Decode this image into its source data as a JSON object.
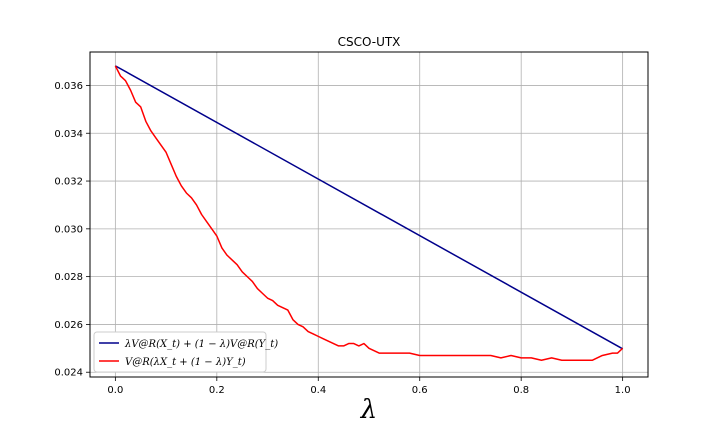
{
  "chart_data": {
    "type": "line",
    "title": "CSCO-UTX",
    "xlabel": "λ",
    "ylabel": "",
    "xlim": [
      -0.05,
      1.05
    ],
    "ylim": [
      0.0238,
      0.0374
    ],
    "xticks": [
      0.0,
      0.2,
      0.4,
      0.6,
      0.8,
      1.0
    ],
    "xtick_labels": [
      "0.0",
      "0.2",
      "0.4",
      "0.6",
      "0.8",
      "1.0"
    ],
    "yticks": [
      0.024,
      0.026,
      0.028,
      0.03,
      0.032,
      0.034,
      0.036
    ],
    "ytick_labels": [
      "0.024",
      "0.026",
      "0.028",
      "0.030",
      "0.032",
      "0.036"
    ],
    "ytick_labels_full": [
      "0.024",
      "0.026",
      "0.028",
      "0.030",
      "0.032",
      "0.034",
      "0.036"
    ],
    "grid": true,
    "legend_position": "lower-left",
    "series": [
      {
        "name": "λV@R(X_t) + (1 − λ)V@R(Y_t)",
        "color": "#00008b",
        "x": [
          0.0,
          1.0
        ],
        "y": [
          0.03682,
          0.02498
        ]
      },
      {
        "name": "V@R(λX_t + (1 − λ)Y_t)",
        "color": "#ff0000",
        "x": [
          0.0,
          0.01,
          0.02,
          0.03,
          0.04,
          0.05,
          0.06,
          0.07,
          0.08,
          0.09,
          0.1,
          0.11,
          0.12,
          0.13,
          0.14,
          0.15,
          0.16,
          0.17,
          0.18,
          0.19,
          0.2,
          0.21,
          0.22,
          0.23,
          0.24,
          0.25,
          0.26,
          0.27,
          0.28,
          0.29,
          0.3,
          0.31,
          0.32,
          0.33,
          0.34,
          0.35,
          0.36,
          0.37,
          0.38,
          0.39,
          0.4,
          0.41,
          0.42,
          0.43,
          0.44,
          0.45,
          0.46,
          0.47,
          0.48,
          0.49,
          0.5,
          0.52,
          0.54,
          0.56,
          0.58,
          0.6,
          0.62,
          0.64,
          0.66,
          0.68,
          0.7,
          0.72,
          0.74,
          0.76,
          0.78,
          0.8,
          0.82,
          0.84,
          0.86,
          0.88,
          0.9,
          0.92,
          0.94,
          0.96,
          0.98,
          0.99,
          1.0
        ],
        "y": [
          0.03682,
          0.0364,
          0.0362,
          0.0358,
          0.0353,
          0.0351,
          0.0345,
          0.0341,
          0.0338,
          0.0335,
          0.0332,
          0.0327,
          0.0322,
          0.0318,
          0.0315,
          0.0313,
          0.031,
          0.0306,
          0.0303,
          0.03,
          0.0297,
          0.0292,
          0.0289,
          0.0287,
          0.0285,
          0.0282,
          0.028,
          0.0278,
          0.0275,
          0.0273,
          0.0271,
          0.027,
          0.0268,
          0.0267,
          0.0266,
          0.0262,
          0.026,
          0.0259,
          0.0257,
          0.0256,
          0.0255,
          0.0254,
          0.0253,
          0.0252,
          0.0251,
          0.0251,
          0.0252,
          0.0252,
          0.0251,
          0.0252,
          0.025,
          0.0248,
          0.0248,
          0.0248,
          0.0248,
          0.0247,
          0.0247,
          0.0247,
          0.0247,
          0.0247,
          0.0247,
          0.0247,
          0.0247,
          0.0246,
          0.0247,
          0.0246,
          0.0246,
          0.0245,
          0.0246,
          0.0245,
          0.0245,
          0.0245,
          0.0245,
          0.0247,
          0.0248,
          0.0248,
          0.025
        ]
      }
    ]
  }
}
